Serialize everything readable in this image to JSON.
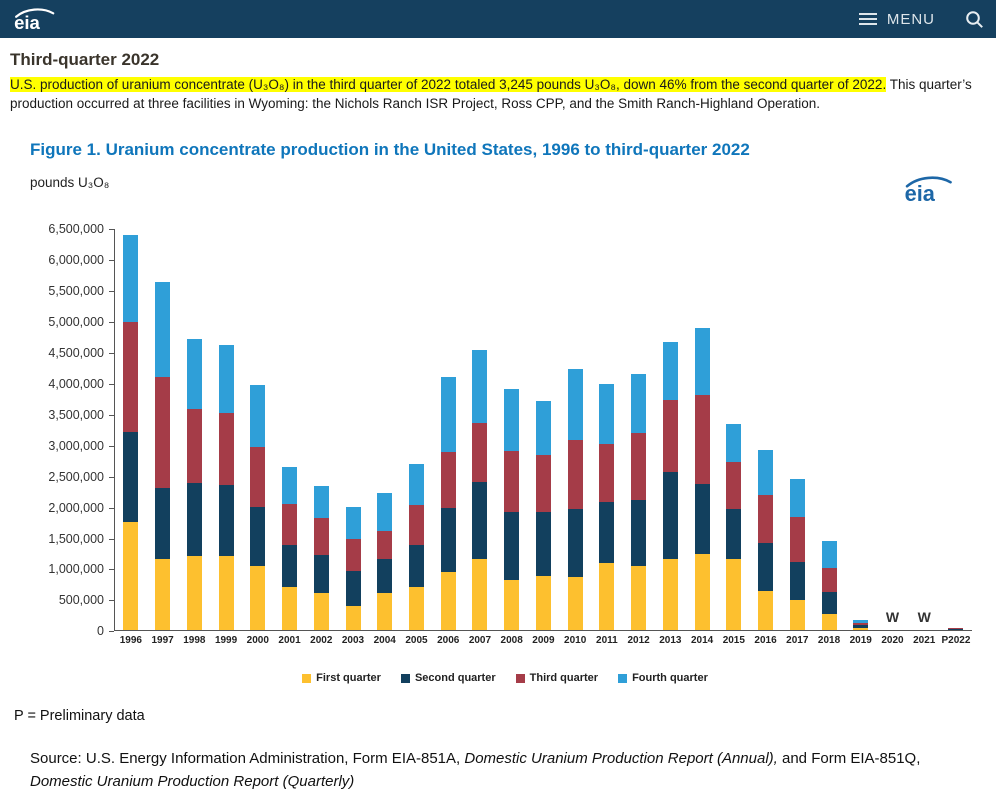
{
  "header": {
    "logo_text": "eia",
    "menu_label": "MENU"
  },
  "page": {
    "title": "Third-quarter 2022",
    "summary_highlight": "U.S. production of uranium concentrate (U₃O₈) in the third quarter of 2022 totaled 3,245 pounds U₃O₈, down 46% from the second quarter of 2022.",
    "summary_rest": " This quarter’s production occurred at three facilities in Wyoming: the Nichols Ranch ISR Project, Ross CPP, and the Smith Ranch-Highland Operation."
  },
  "figure": {
    "title": "Figure 1. Uranium concentrate production in the United States, 1996 to third-quarter 2022",
    "y_unit": "pounds U₃O₈",
    "preliminary_note": "P = Preliminary data",
    "source_parts": [
      {
        "text": "Source: U.S. Energy Information Administration, Form EIA-851A, ",
        "italic": false
      },
      {
        "text": "Domestic Uranium Production Report (Annual),",
        "italic": true
      },
      {
        "text": " and Form EIA-851Q, ",
        "italic": false
      },
      {
        "text": "Domestic Uranium Production Report (Quarterly)",
        "italic": true
      }
    ]
  },
  "colors": {
    "header_bg": "#15405f",
    "figure_title": "#0f76bb",
    "highlight": "#ffff00"
  },
  "chart_data": {
    "type": "bar",
    "stacked": true,
    "title": "Figure 1. Uranium concentrate production in the United States, 1996 to third-quarter 2022",
    "xlabel": "",
    "ylabel": "pounds U₃O₈",
    "ylim": [
      0,
      6500000
    ],
    "y_tick_step": 500000,
    "grid": false,
    "legend_position": "bottom",
    "categories": [
      "1996",
      "1997",
      "1998",
      "1999",
      "2000",
      "2001",
      "2002",
      "2003",
      "2004",
      "2005",
      "2006",
      "2007",
      "2008",
      "2009",
      "2010",
      "2011",
      "2012",
      "2013",
      "2014",
      "2015",
      "2016",
      "2017",
      "2018",
      "2019",
      "2020",
      "2021",
      "P2022"
    ],
    "withheld": [
      "2020",
      "2021"
    ],
    "withheld_symbol": "W",
    "series": [
      {
        "name": "First quarter",
        "color": "#fdc02f",
        "values": [
          1750000,
          1150000,
          1200000,
          1200000,
          1040000,
          700000,
          600000,
          400000,
          600000,
          700000,
          940000,
          1150000,
          810000,
          880000,
          860000,
          1090000,
          1040000,
          1150000,
          1230000,
          1150000,
          630000,
          490000,
          260000,
          45000,
          null,
          null,
          0
        ]
      },
      {
        "name": "Second quarter",
        "color": "#12405e",
        "values": [
          1450000,
          1150000,
          1180000,
          1150000,
          950000,
          680000,
          620000,
          560000,
          550000,
          680000,
          1040000,
          1250000,
          1100000,
          1030000,
          1100000,
          980000,
          1070000,
          1410000,
          1140000,
          810000,
          780000,
          610000,
          360000,
          45000,
          null,
          null,
          6009
        ]
      },
      {
        "name": "Third quarter",
        "color": "#a53c48",
        "values": [
          1780000,
          1800000,
          1200000,
          1170000,
          980000,
          660000,
          600000,
          520000,
          450000,
          650000,
          910000,
          960000,
          990000,
          930000,
          1120000,
          940000,
          1080000,
          1170000,
          1440000,
          760000,
          780000,
          730000,
          380000,
          30000,
          null,
          null,
          3245
        ]
      },
      {
        "name": "Fourth quarter",
        "color": "#2f9fd8",
        "values": [
          1420000,
          1540000,
          1130000,
          1090000,
          990000,
          600000,
          520000,
          520000,
          620000,
          660000,
          1210000,
          1180000,
          1000000,
          870000,
          1150000,
          980000,
          960000,
          940000,
          1080000,
          620000,
          730000,
          620000,
          440000,
          50000,
          null,
          null,
          0
        ]
      }
    ]
  }
}
